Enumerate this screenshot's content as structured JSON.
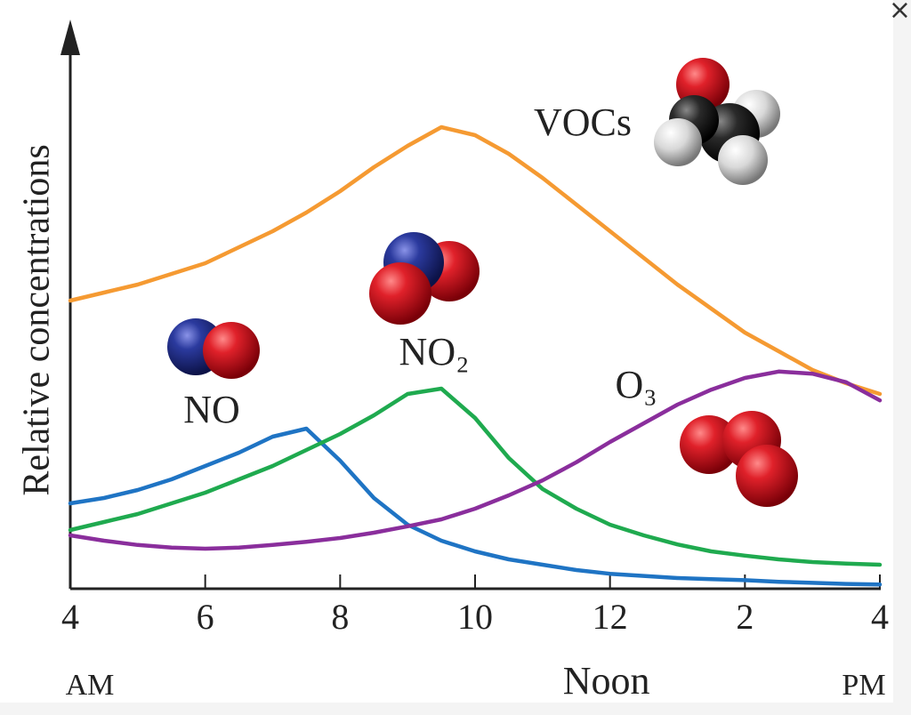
{
  "close_button": "×",
  "chart_data": {
    "type": "line",
    "ylabel": "Relative concentrations",
    "x": [
      4,
      4.5,
      5,
      5.5,
      6,
      6.5,
      7,
      7.5,
      8,
      8.5,
      9,
      9.5,
      10,
      10.5,
      11,
      11.5,
      12,
      12.5,
      13,
      13.5,
      14,
      14.5,
      15,
      15.5,
      16
    ],
    "xlim": [
      4,
      16
    ],
    "xticks": [
      4,
      6,
      8,
      10,
      12,
      {
        "value": 14,
        "label": "2"
      },
      {
        "value": 16,
        "label": "4"
      }
    ],
    "x_annotations": [
      "AM",
      "Noon",
      "PM"
    ],
    "ylim": [
      0,
      100
    ],
    "series": [
      {
        "name": "VOCs",
        "color": "#f59a32",
        "values": [
          54,
          55.5,
          57,
          59,
          61,
          64,
          67,
          70.5,
          74.5,
          79,
          83,
          86.5,
          85,
          81.5,
          77,
          72,
          67,
          62,
          57,
          52.5,
          48,
          44.5,
          41,
          38.5,
          36.5
        ]
      },
      {
        "name": "NO",
        "color": "#1f74c4",
        "values": [
          16,
          17,
          18.5,
          20.5,
          23,
          25.5,
          28.5,
          30,
          24,
          17,
          12,
          9,
          7,
          5.5,
          4.5,
          3.5,
          2.8,
          2.4,
          2,
          1.8,
          1.6,
          1.3,
          1.1,
          0.9,
          0.8
        ]
      },
      {
        "name": "NO₂",
        "color": "#1faa4f",
        "values": [
          11,
          12.5,
          14,
          16,
          18,
          20.5,
          23,
          26,
          29,
          32.5,
          36.5,
          37.5,
          32,
          24.5,
          18.7,
          15,
          12,
          10,
          8.3,
          7,
          6.2,
          5.5,
          5,
          4.7,
          4.5
        ]
      },
      {
        "name": "O₃",
        "color": "#8a2e9c",
        "values": [
          10,
          9,
          8.2,
          7.7,
          7.5,
          7.7,
          8.2,
          8.8,
          9.5,
          10.5,
          11.7,
          13,
          15,
          17.5,
          20.3,
          23.7,
          27.5,
          31,
          34.5,
          37.3,
          39.5,
          40.7,
          40.3,
          38.7,
          35.3
        ]
      }
    ]
  }
}
